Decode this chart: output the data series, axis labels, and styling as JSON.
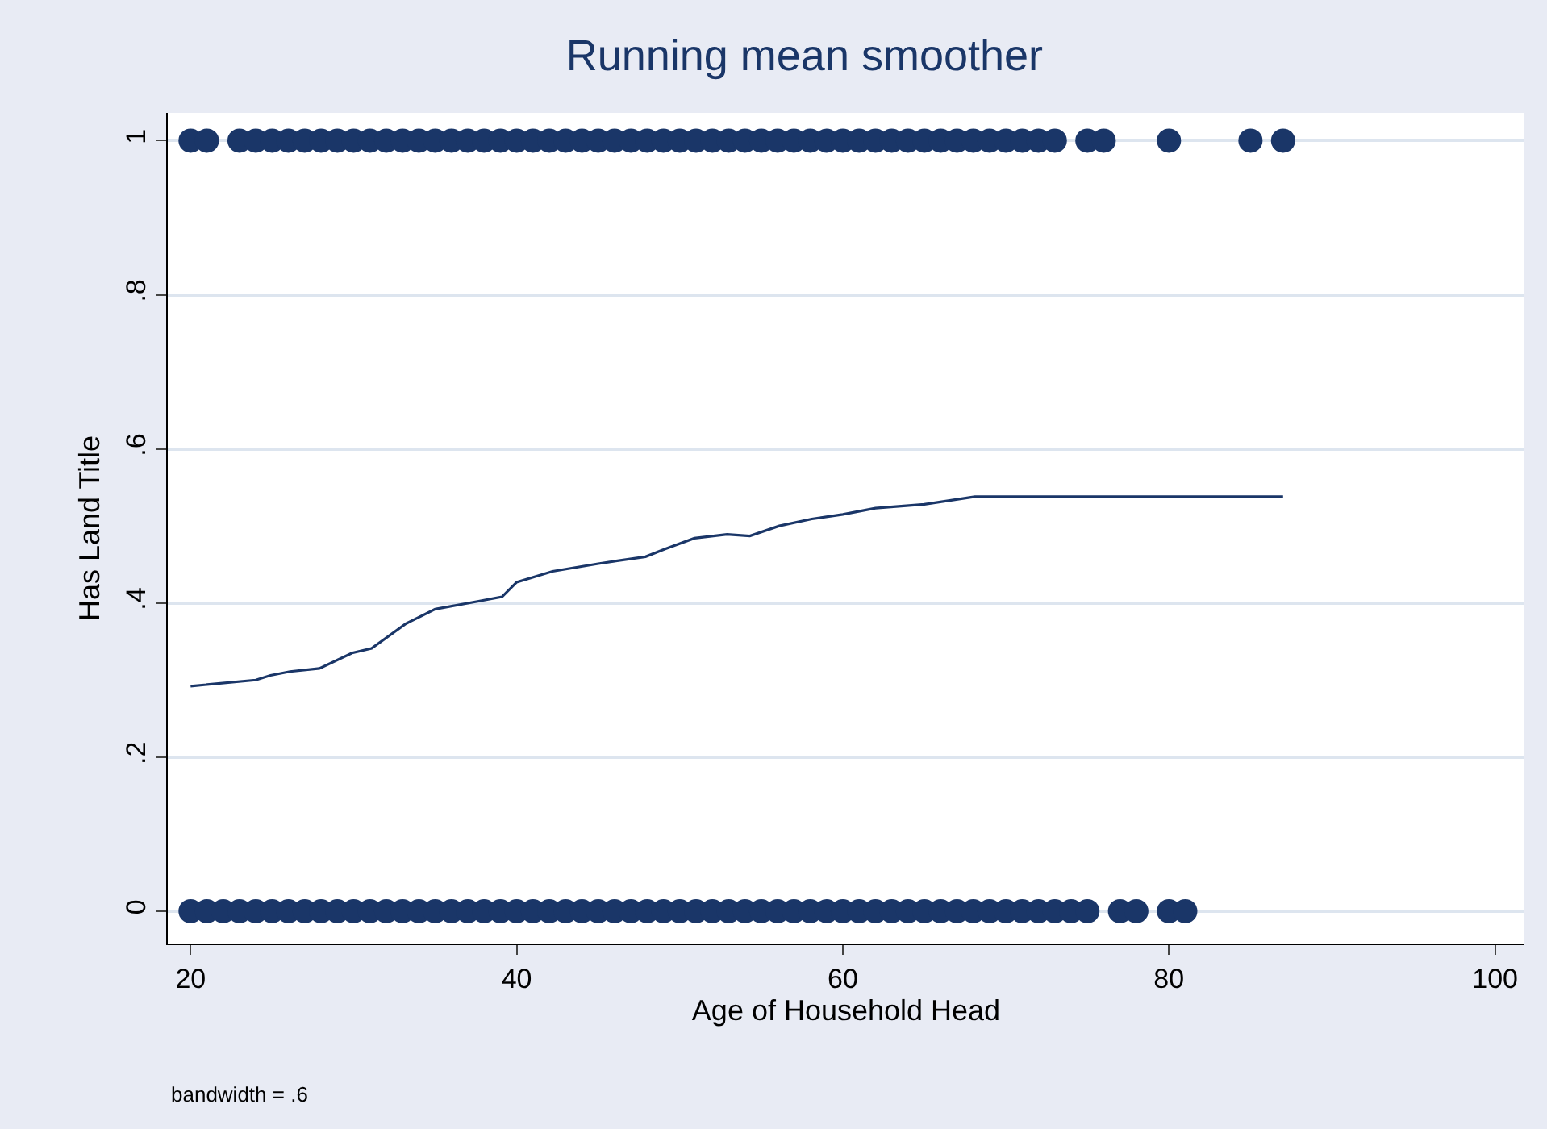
{
  "chart_data": {
    "type": "scatter",
    "title": "Running mean smoother",
    "xlabel": "Age of Household Head",
    "ylabel": "Has Land Title",
    "annotations": [
      "bandwidth = .6"
    ],
    "xlim": [
      18.6,
      101.8
    ],
    "ylim": [
      -0.042,
      1.036
    ],
    "xticks": [
      20,
      40,
      60,
      80,
      100
    ],
    "yticks": [
      0,
      {
        "value": 0.2,
        "label": ".2"
      },
      {
        "value": 0.4,
        "label": ".4"
      },
      {
        "value": 0.6,
        "label": ".6"
      },
      {
        "value": 0.8,
        "label": ".8"
      },
      1
    ],
    "grid": "y",
    "marker": "circle",
    "series": [
      {
        "color": "#1a3668",
        "x": [
          20,
          21,
          23,
          24,
          25,
          26,
          27,
          28,
          29,
          30,
          31,
          32,
          33,
          34,
          35,
          36,
          37,
          38,
          39,
          40,
          41,
          42,
          43,
          44,
          45,
          46,
          47,
          48,
          49,
          50,
          51,
          52,
          53,
          54,
          55,
          56,
          57,
          58,
          59,
          60,
          61,
          62,
          63,
          64,
          65,
          66,
          67,
          68,
          69,
          70,
          71,
          72,
          73,
          75,
          76,
          80,
          85,
          87
        ],
        "values": [
          1,
          1,
          1,
          1,
          1,
          1,
          1,
          1,
          1,
          1,
          1,
          1,
          1,
          1,
          1,
          1,
          1,
          1,
          1,
          1,
          1,
          1,
          1,
          1,
          1,
          1,
          1,
          1,
          1,
          1,
          1,
          1,
          1,
          1,
          1,
          1,
          1,
          1,
          1,
          1,
          1,
          1,
          1,
          1,
          1,
          1,
          1,
          1,
          1,
          1,
          1,
          1,
          1,
          1,
          1,
          1,
          1,
          1
        ]
      },
      {
        "color": "#1a3668",
        "x": [
          20,
          21,
          22,
          23,
          24,
          25,
          26,
          27,
          28,
          29,
          30,
          31,
          32,
          33,
          34,
          35,
          36,
          37,
          38,
          39,
          40,
          41,
          42,
          43,
          44,
          45,
          46,
          47,
          48,
          49,
          50,
          51,
          52,
          53,
          54,
          55,
          56,
          57,
          58,
          59,
          60,
          61,
          62,
          63,
          64,
          65,
          66,
          67,
          68,
          69,
          70,
          71,
          72,
          73,
          74,
          75,
          77,
          78,
          80,
          81
        ],
        "values": [
          0,
          0,
          0,
          0,
          0,
          0,
          0,
          0,
          0,
          0,
          0,
          0,
          0,
          0,
          0,
          0,
          0,
          0,
          0,
          0,
          0,
          0,
          0,
          0,
          0,
          0,
          0,
          0,
          0,
          0,
          0,
          0,
          0,
          0,
          0,
          0,
          0,
          0,
          0,
          0,
          0,
          0,
          0,
          0,
          0,
          0,
          0,
          0,
          0,
          0,
          0,
          0,
          0,
          0,
          0,
          0,
          0,
          0,
          0,
          0
        ]
      },
      {
        "type": "line",
        "color": "#1a3668",
        "marker": "none",
        "x": [
          20,
          24.0,
          24.9,
          26.1,
          27.9,
          29.9,
          31.1,
          33.2,
          35.0,
          37.6,
          39.1,
          40.0,
          42.2,
          45.0,
          47.9,
          49.1,
          50.9,
          52.9,
          54.3,
          56.1,
          58.1,
          60.0,
          62.0,
          65.0,
          68.1,
          72.7,
          87
        ],
        "values": [
          0.292,
          0.3,
          0.306,
          0.311,
          0.315,
          0.335,
          0.341,
          0.373,
          0.392,
          0.402,
          0.408,
          0.427,
          0.441,
          0.451,
          0.46,
          0.47,
          0.484,
          0.489,
          0.487,
          0.5,
          0.509,
          0.515,
          0.523,
          0.528,
          0.538,
          0.538,
          0.538
        ]
      }
    ]
  }
}
